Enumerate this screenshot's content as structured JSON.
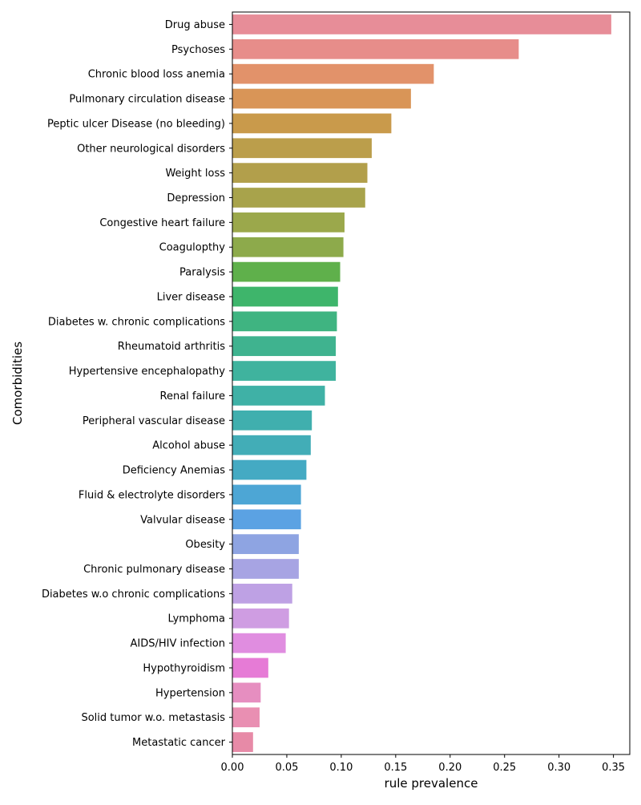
{
  "chart_data": {
    "type": "bar",
    "orientation": "horizontal",
    "xlabel": "rule prevalence",
    "ylabel": "Comorbidities",
    "xlim": [
      0,
      0.365
    ],
    "xticks": [
      "0.00",
      "0.05",
      "0.10",
      "0.15",
      "0.20",
      "0.25",
      "0.30",
      "0.35"
    ],
    "grid": false,
    "categories": [
      "Drug abuse",
      "Psychoses",
      "Chronic blood loss anemia",
      "Pulmonary circulation disease",
      "Peptic ulcer Disease (no bleeding)",
      "Other neurological disorders",
      "Weight loss",
      "Depression",
      "Congestive heart failure",
      "Coagulopthy",
      "Paralysis",
      "Liver disease",
      "Diabetes w. chronic complications",
      "Rheumatoid arthritis",
      "Hypertensive encephalopathy",
      "Renal failure",
      "Peripheral vascular disease",
      "Alcohol abuse",
      "Deficiency Anemias",
      "Fluid & electrolyte disorders",
      "Valvular disease",
      "Obesity",
      "Chronic pulmonary disease",
      "Diabetes w.o chronic complications",
      "Lymphoma",
      "AIDS/HIV infection",
      "Hypothyroidism",
      "Hypertension",
      "Solid tumor w.o. metastasis",
      "Metastatic cancer"
    ],
    "values": [
      0.348,
      0.263,
      0.185,
      0.164,
      0.146,
      0.128,
      0.124,
      0.122,
      0.103,
      0.102,
      0.099,
      0.097,
      0.096,
      0.095,
      0.095,
      0.085,
      0.073,
      0.072,
      0.068,
      0.063,
      0.063,
      0.061,
      0.061,
      0.055,
      0.052,
      0.049,
      0.033,
      0.026,
      0.025,
      0.019
    ],
    "colors": [
      "#e78d98",
      "#e78d8a",
      "#e2926a",
      "#d99557",
      "#c99a4b",
      "#bb9e4b",
      "#b29f4b",
      "#a8a34b",
      "#9ba84b",
      "#8daa4b",
      "#5fb04b",
      "#3eb56b",
      "#3fb481",
      "#3fb38f",
      "#3fb39e",
      "#3fb1a6",
      "#40afae",
      "#42adb7",
      "#44aac3",
      "#4da6d5",
      "#5ba2e3",
      "#8ea4e2",
      "#a7a4e3",
      "#bea1e4",
      "#cf9de2",
      "#e08de0",
      "#e67bd6",
      "#e68ec0",
      "#e98fb2",
      "#e78aa7"
    ]
  }
}
